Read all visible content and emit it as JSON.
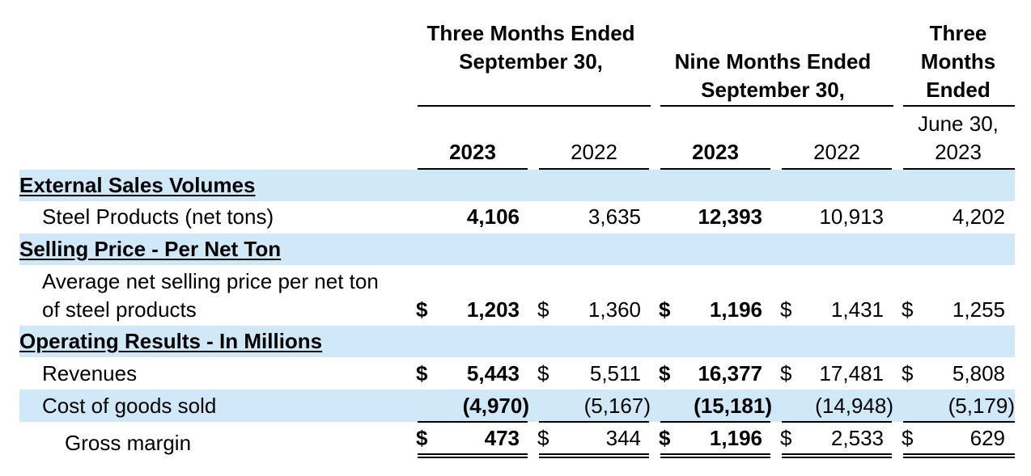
{
  "headers": {
    "group1": "Three Months Ended September 30,",
    "group2": "Nine Months Ended September 30,",
    "group3": "Three Months Ended June 30, 2023",
    "group3_top": "Three Months Ended",
    "group3_sub": "June 30, 2023",
    "years": [
      "2023",
      "2022",
      "2023",
      "2022"
    ]
  },
  "sections": {
    "external_sales": "External Sales Volumes",
    "selling_price": "Selling Price - Per Net Ton",
    "operating_results": "Operating Results - In Millions"
  },
  "rows": {
    "steel_products": {
      "label": "Steel Products (net tons)",
      "values": [
        "4,106",
        "3,635",
        "12,393",
        "10,913",
        "4,202"
      ]
    },
    "avg_price": {
      "label": "Average net selling price per net ton of steel products",
      "values": [
        "1,203",
        "1,360",
        "1,196",
        "1,431",
        "1,255"
      ]
    },
    "revenues": {
      "label": "Revenues",
      "values": [
        "5,443",
        "5,511",
        "16,377",
        "17,481",
        "5,808"
      ]
    },
    "cogs": {
      "label": "Cost of goods sold",
      "values": [
        "(4,970)",
        "(5,167)",
        "(15,181)",
        "(14,948)",
        "(5,179)"
      ]
    },
    "gross_margin": {
      "label": "Gross margin",
      "values": [
        "473",
        "344",
        "1,196",
        "2,533",
        "629"
      ]
    }
  },
  "currency_symbol": "$",
  "colors": {
    "band": "#cfe9f9"
  }
}
